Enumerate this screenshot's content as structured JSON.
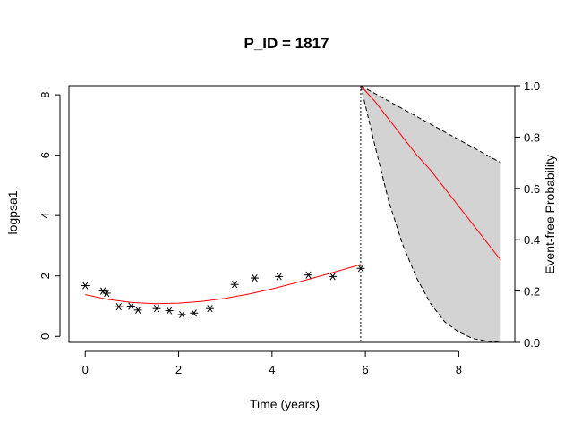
{
  "chart_data": {
    "type": "scatter",
    "title": "P_ID = 1817",
    "xlabel": "Time (years)",
    "ylabel_left": "logpsa1",
    "ylabel_right": "Event-free Probability",
    "xlim": [
      -0.35,
      9.2
    ],
    "ylim_left": [
      -0.2,
      8.3
    ],
    "ylim_right": [
      0,
      1
    ],
    "x_ticks": [
      0,
      2,
      4,
      6,
      8
    ],
    "y_ticks_left": [
      0,
      2,
      4,
      6,
      8
    ],
    "y_ticks_right": [
      0.0,
      0.2,
      0.4,
      0.6,
      0.8,
      1.0
    ],
    "y_tick_labels_right": [
      "0.0",
      "0.2",
      "0.4",
      "0.6",
      "0.8",
      "1.0"
    ],
    "landmark_time": 5.9,
    "observations": {
      "marker": "asterisk",
      "color": "#000000",
      "x": [
        0.0,
        0.38,
        0.46,
        0.72,
        0.98,
        1.13,
        1.53,
        1.8,
        2.07,
        2.33,
        2.67,
        3.2,
        3.63,
        4.15,
        4.78,
        5.3,
        5.9
      ],
      "y": [
        1.68,
        1.5,
        1.43,
        0.98,
        1.0,
        0.87,
        0.92,
        0.85,
        0.72,
        0.77,
        0.92,
        1.72,
        1.93,
        1.98,
        2.03,
        1.98,
        2.25
      ]
    },
    "fitted_longitudinal": {
      "color": "#ff0000",
      "x": [
        0.0,
        0.5,
        1.0,
        1.5,
        2.0,
        2.5,
        3.0,
        3.5,
        4.0,
        4.5,
        5.0,
        5.5,
        5.9
      ],
      "y": [
        1.38,
        1.22,
        1.12,
        1.08,
        1.1,
        1.16,
        1.26,
        1.4,
        1.57,
        1.77,
        1.98,
        2.2,
        2.38
      ]
    },
    "survival": {
      "line_color": "#ff0000",
      "band_color": "#d3d3d3",
      "x": [
        5.9,
        6.2,
        6.5,
        6.8,
        7.1,
        7.4,
        7.7,
        8.0,
        8.3,
        8.6,
        8.9
      ],
      "mean": [
        1.0,
        0.94,
        0.87,
        0.8,
        0.73,
        0.67,
        0.6,
        0.53,
        0.46,
        0.39,
        0.32
      ],
      "upper": [
        1.0,
        0.97,
        0.94,
        0.91,
        0.88,
        0.85,
        0.82,
        0.79,
        0.76,
        0.73,
        0.7
      ],
      "lower": [
        1.0,
        0.77,
        0.55,
        0.38,
        0.25,
        0.15,
        0.08,
        0.04,
        0.015,
        0.005,
        0.0
      ]
    }
  }
}
